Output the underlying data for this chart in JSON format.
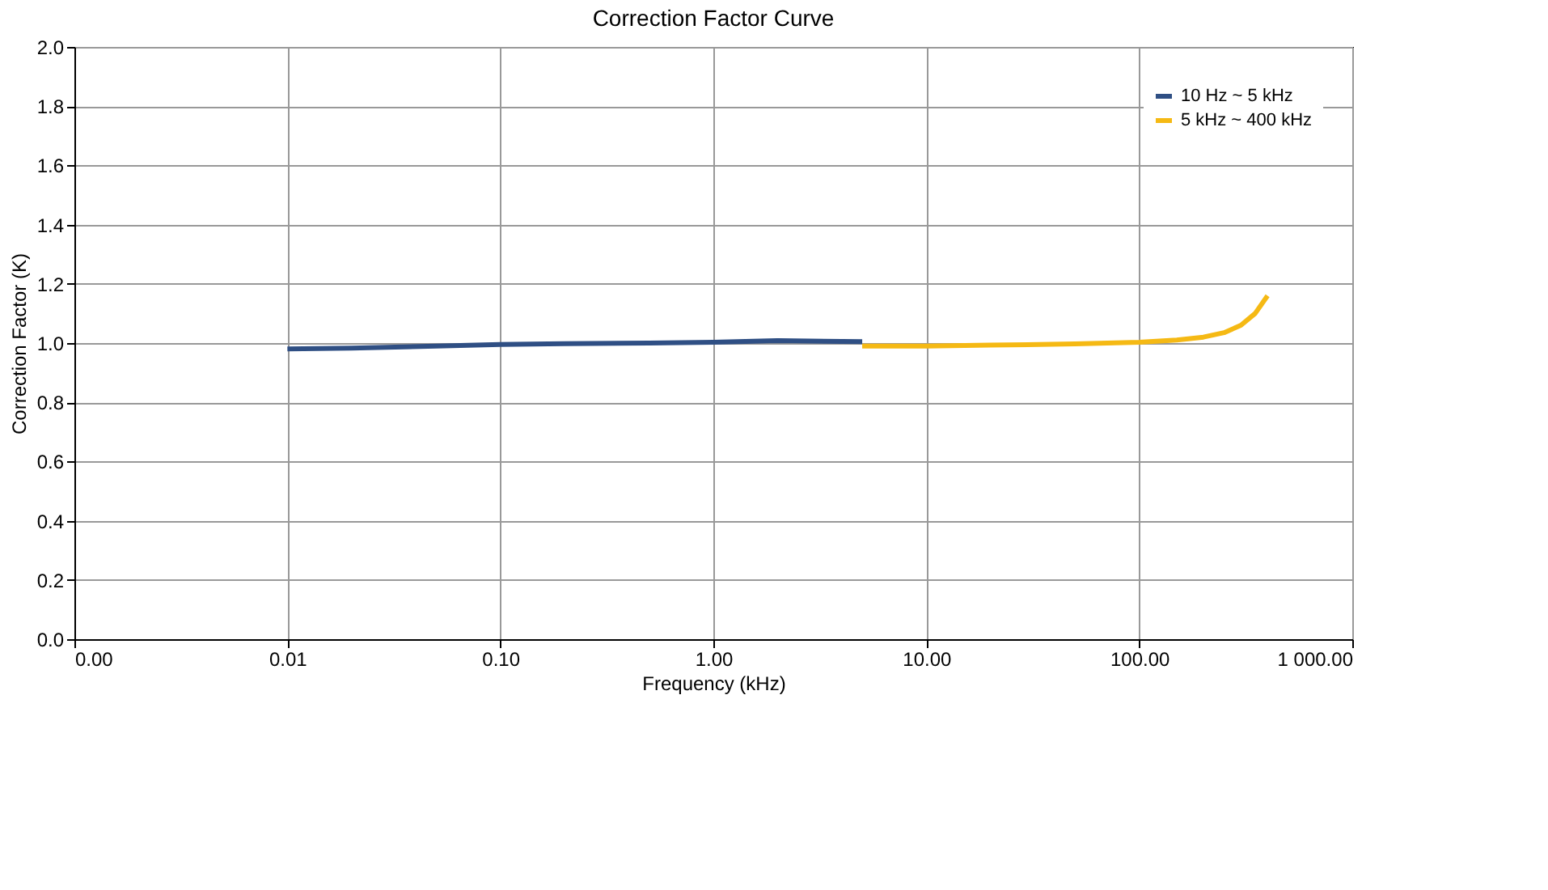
{
  "chart_data": {
    "type": "line",
    "title": "Correction Factor Curve",
    "xlabel": "Frequency (kHz)",
    "ylabel": "Correction Factor (K)",
    "log": "x",
    "xlim": [
      0.001,
      1000
    ],
    "xticks": [
      {
        "value": 0.001,
        "label": "0.00"
      },
      {
        "value": 0.01,
        "label": "0.01"
      },
      {
        "value": 0.1,
        "label": "0.10"
      },
      {
        "value": 1,
        "label": "1.00"
      },
      {
        "value": 10,
        "label": "10.00"
      },
      {
        "value": 100,
        "label": "100.00"
      },
      {
        "value": 1000,
        "label": "1 000.00"
      }
    ],
    "ylim": [
      0,
      2
    ],
    "yticks": [
      {
        "value": 0,
        "label": "0.0"
      },
      {
        "value": 0.2,
        "label": "0.2"
      },
      {
        "value": 0.4,
        "label": "0.4"
      },
      {
        "value": 0.6,
        "label": "0.6"
      },
      {
        "value": 0.8,
        "label": "0.8"
      },
      {
        "value": 1,
        "label": "1.0"
      },
      {
        "value": 1.2,
        "label": "1.2"
      },
      {
        "value": 1.4,
        "label": "1.4"
      },
      {
        "value": 1.6,
        "label": "1.6"
      },
      {
        "value": 1.8,
        "label": "1.8"
      },
      {
        "value": 2,
        "label": "2.0"
      }
    ],
    "grid": true,
    "legend": "top right",
    "marker": "none",
    "line_style": "solid",
    "series": [
      {
        "name": "10 Hz ~ 5 kHz",
        "color": "#2f4f84",
        "x": [
          0.01,
          0.02,
          0.05,
          0.1,
          0.2,
          0.5,
          1,
          2,
          5
        ],
        "values": [
          0.98,
          0.983,
          0.99,
          0.995,
          0.998,
          1.0,
          1.003,
          1.008,
          1.005
        ]
      },
      {
        "name": "5 kHz ~ 400 kHz",
        "color": "#f5b914",
        "x": [
          5,
          10,
          20,
          50,
          100,
          150,
          200,
          250,
          300,
          350,
          400
        ],
        "values": [
          0.99,
          0.99,
          0.993,
          0.997,
          1.003,
          1.01,
          1.02,
          1.035,
          1.06,
          1.1,
          1.16
        ]
      }
    ]
  }
}
